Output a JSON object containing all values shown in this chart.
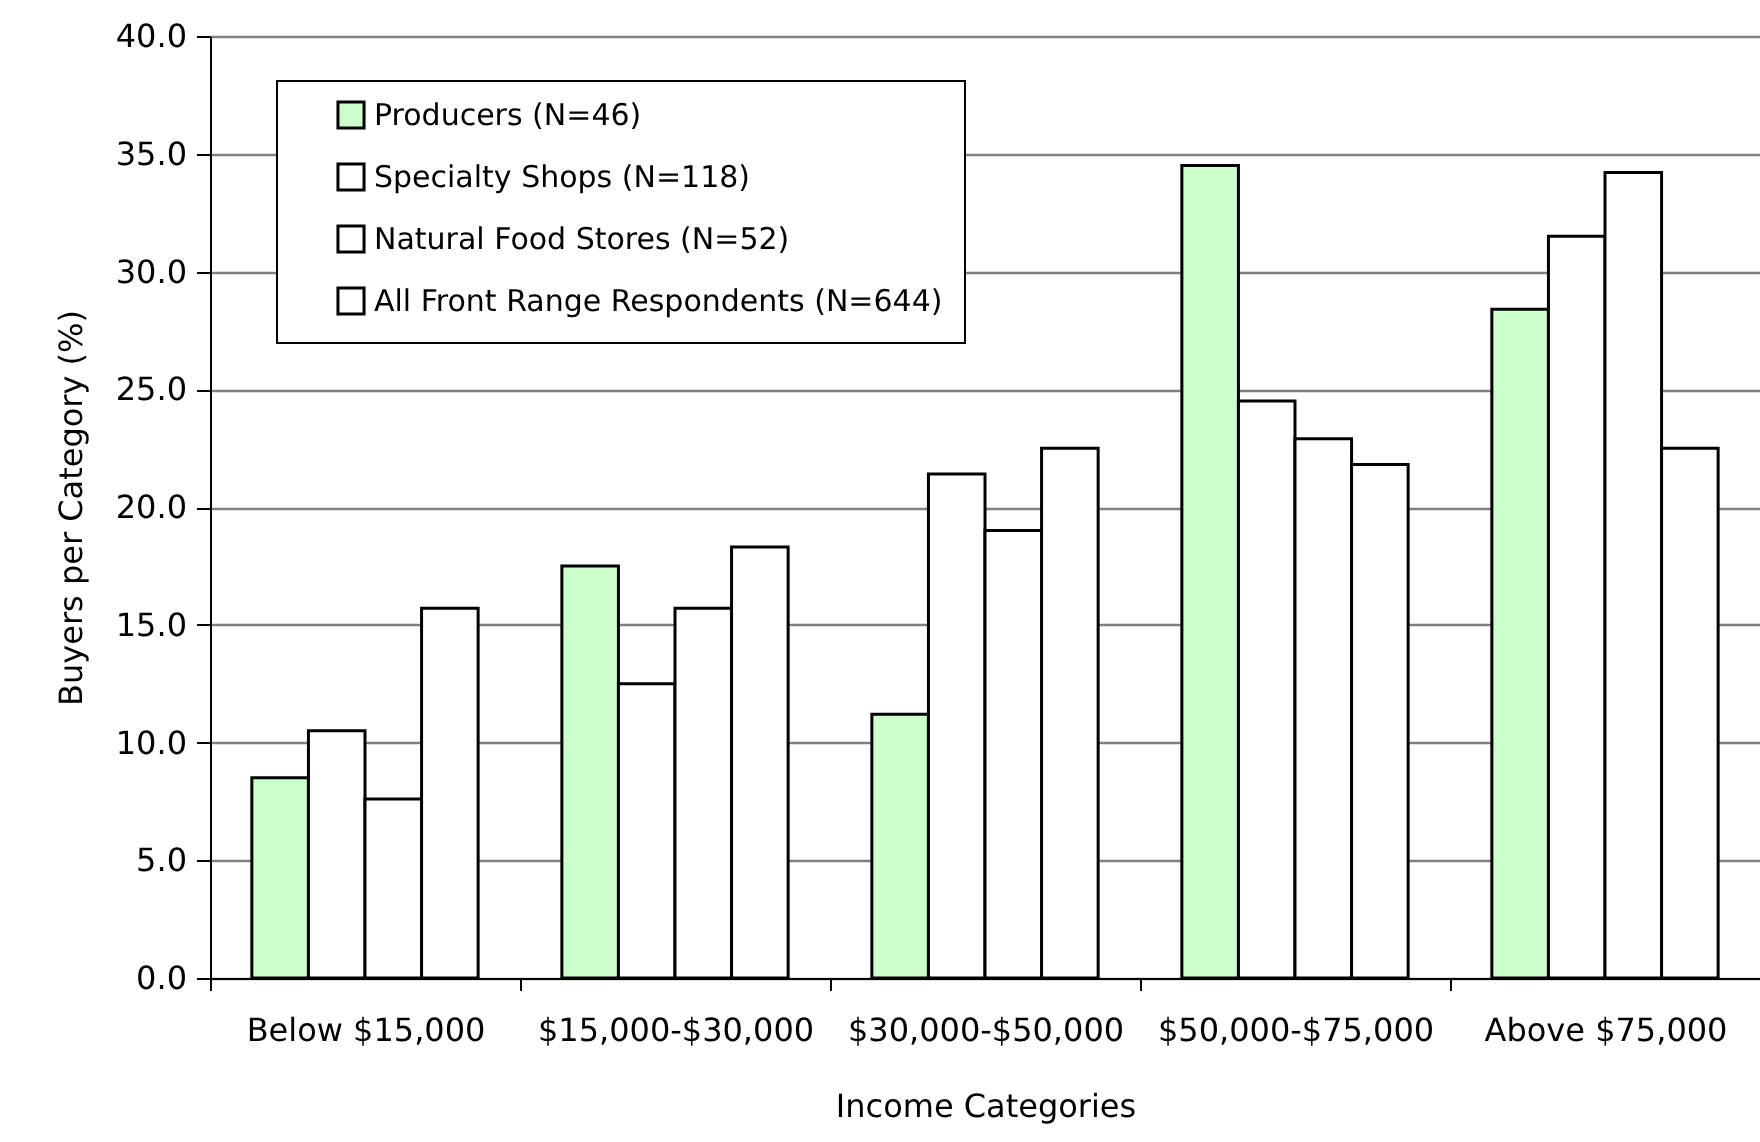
{
  "chart_data": {
    "type": "bar",
    "xlabel": "Income Categories",
    "ylabel": "Buyers per Category (%)",
    "categories": [
      "Below $15,000",
      "$15,000-$30,000",
      "$30,000-$50,000",
      "$50,000-$75,000",
      "Above $75,000"
    ],
    "series": [
      {
        "name": "Producers (N=46)",
        "color": "#ccffcc",
        "values": [
          8.5,
          17.5,
          11.2,
          34.5,
          28.4
        ]
      },
      {
        "name": "Specialty Shops (N=118)",
        "color": "#ffffff",
        "values": [
          10.5,
          12.5,
          21.4,
          24.5,
          31.5
        ]
      },
      {
        "name": "Natural Food Stores (N=52)",
        "color": "#ffffff",
        "values": [
          7.6,
          15.7,
          19.0,
          22.9,
          34.2
        ]
      },
      {
        "name": "All Front Range Respondents (N=644)",
        "color": "#ffffff",
        "values": [
          15.7,
          18.3,
          22.5,
          21.8,
          22.5
        ]
      }
    ],
    "ylim": [
      0,
      40
    ],
    "yticks": [
      {
        "value": 0,
        "label": "0.0"
      },
      {
        "value": 5,
        "label": "5.0"
      },
      {
        "value": 10,
        "label": "10.0"
      },
      {
        "value": 15,
        "label": "15.0"
      },
      {
        "value": 20,
        "label": "20.0"
      },
      {
        "value": 25,
        "label": "25.0"
      },
      {
        "value": 30,
        "label": "30.0"
      },
      {
        "value": 35,
        "label": "35.0"
      },
      {
        "value": 40,
        "label": "40.0"
      }
    ],
    "grid": "y",
    "legend": "top left"
  }
}
